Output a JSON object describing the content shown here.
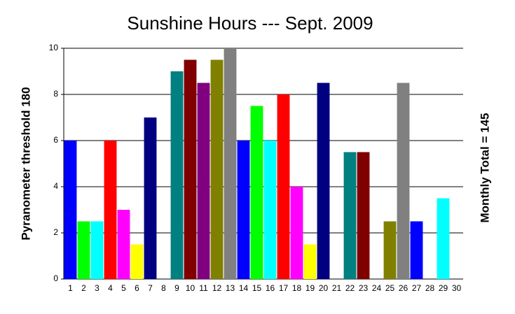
{
  "chart_data": {
    "type": "bar",
    "title": "Sunshine Hours --- Sept. 2009",
    "y_label": "Pyranometer threshold 180",
    "right_label": "Monthly Total = 145",
    "categories": [
      "1",
      "2",
      "3",
      "4",
      "5",
      "6",
      "7",
      "8",
      "9",
      "10",
      "11",
      "12",
      "13",
      "14",
      "15",
      "16",
      "17",
      "18",
      "19",
      "20",
      "21",
      "22",
      "23",
      "24",
      "25",
      "26",
      "27",
      "28",
      "29",
      "30"
    ],
    "values": [
      6,
      2.5,
      2.5,
      6,
      3,
      1.5,
      7,
      0,
      9,
      9.5,
      8.5,
      9.5,
      10,
      6,
      7.5,
      6,
      8,
      4,
      1.5,
      8.5,
      0,
      5.5,
      5.5,
      0,
      2.5,
      8.5,
      2.5,
      0,
      3.5,
      0
    ],
    "colors": [
      "#0000ff",
      "#00ff00",
      "#00ffff",
      "#ff0000",
      "#ff00ff",
      "#ffff00",
      "#000080",
      "#008000",
      "#008080",
      "#800000",
      "#800080",
      "#808000",
      "#808080",
      "#0000ff",
      "#00ff00",
      "#00ffff",
      "#ff0000",
      "#ff00ff",
      "#ffff00",
      "#000080",
      "#008000",
      "#008080",
      "#800000",
      "#800080",
      "#808000",
      "#808080",
      "#0000ff",
      "#00ff00",
      "#00ffff",
      "#ff0000"
    ],
    "ylim": [
      0,
      10
    ],
    "yticks": [
      0,
      2,
      4,
      6,
      8,
      10
    ],
    "grid": true
  }
}
